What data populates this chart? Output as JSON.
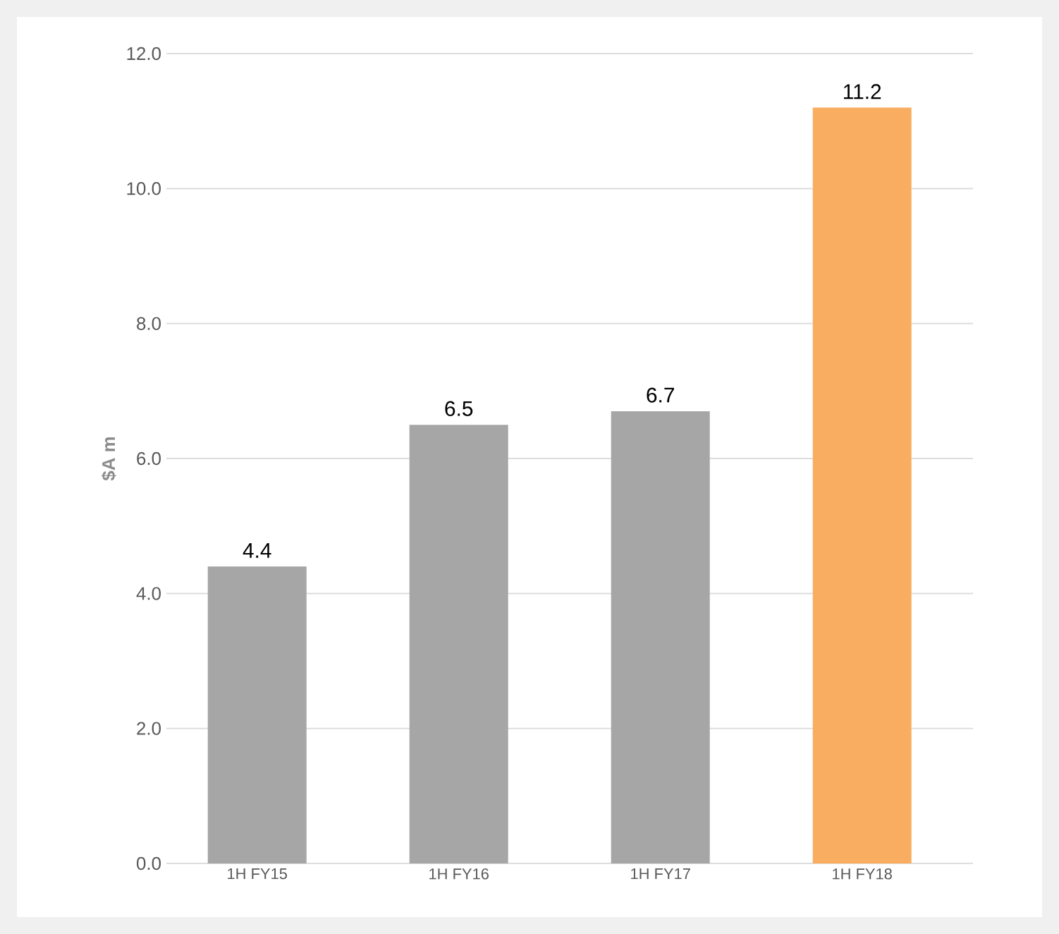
{
  "chart_data": {
    "type": "bar",
    "ylabel": "$A m",
    "categories": [
      "1H FY15",
      "1H FY16",
      "1H FY17",
      "1H FY18"
    ],
    "values": [
      4.4,
      6.5,
      6.7,
      11.2
    ],
    "colors": [
      "#a6a6a6",
      "#a6a6a6",
      "#a6a6a6",
      "#f9ad61"
    ],
    "ylim": [
      0,
      12
    ],
    "yticks": [
      {
        "value": 0,
        "label": "0.0"
      },
      {
        "value": 2,
        "label": "2.0"
      },
      {
        "value": 4,
        "label": "4.0"
      },
      {
        "value": 6,
        "label": "6.0"
      },
      {
        "value": 8,
        "label": "8.0"
      },
      {
        "value": 10,
        "label": "10.0"
      },
      {
        "value": 12,
        "label": "12.0"
      }
    ],
    "grid": "y",
    "data_labels": true
  }
}
